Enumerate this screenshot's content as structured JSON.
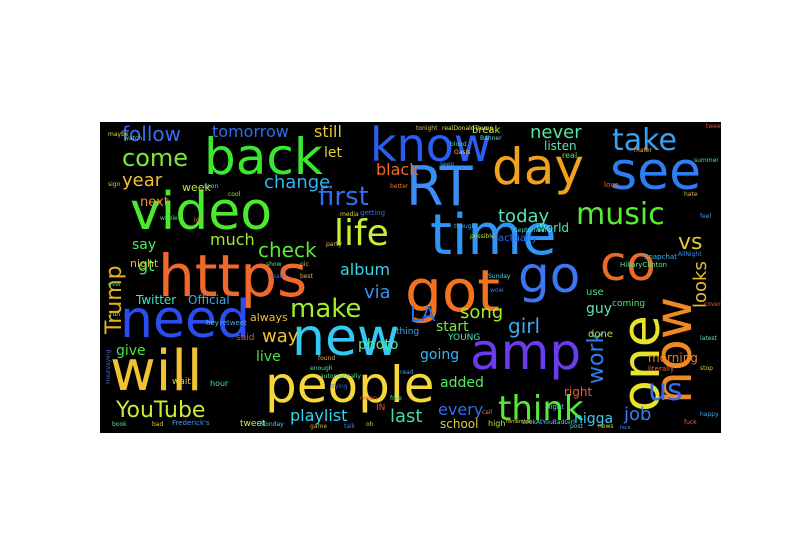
{
  "words": [
    {
      "text": "https",
      "color": "#f0682a"
    },
    {
      "text": "got",
      "color": "#f2721f"
    },
    {
      "text": "time",
      "color": "#2f95f7"
    },
    {
      "text": "people",
      "color": "#f5d73a"
    },
    {
      "text": "will",
      "color": "#f1c232"
    },
    {
      "text": "back",
      "color": "#3ae82f"
    },
    {
      "text": "video",
      "color": "#4bea2c"
    },
    {
      "text": "need",
      "color": "#2a4df0"
    },
    {
      "text": "new",
      "color": "#33c9f3"
    },
    {
      "text": "RT",
      "color": "#3c8ef7"
    },
    {
      "text": "know",
      "color": "#2a5ef2"
    },
    {
      "text": "day",
      "color": "#f2a11c"
    },
    {
      "text": "see",
      "color": "#2f7df5"
    },
    {
      "text": "go",
      "color": "#3d76f2"
    },
    {
      "text": "amp",
      "color": "#6a3cf0"
    },
    {
      "text": "one",
      "color": "#e7e32b"
    },
    {
      "text": "co",
      "color": "#ec6b24"
    },
    {
      "text": "now",
      "color": "#ed8a23"
    },
    {
      "text": "think",
      "color": "#55e93a"
    },
    {
      "text": "music",
      "color": "#59ec35"
    },
    {
      "text": "take",
      "color": "#3aa1f2"
    },
    {
      "text": "life",
      "color": "#c6ef2f"
    },
    {
      "text": "come",
      "color": "#7be838"
    },
    {
      "text": "follow",
      "color": "#3a6ef0"
    },
    {
      "text": "first",
      "color": "#2e6ff0"
    },
    {
      "text": "make",
      "color": "#a0ed2c"
    },
    {
      "text": "YouTube",
      "color": "#c6ec34"
    },
    {
      "text": "Trump",
      "color": "#e6b11f"
    },
    {
      "text": "us",
      "color": "#3a68f0"
    },
    {
      "text": "work",
      "color": "#2d7df2"
    },
    {
      "text": "change",
      "color": "#31b4f2"
    },
    {
      "text": "year",
      "color": "#f1c22e"
    },
    {
      "text": "check",
      "color": "#59e934"
    },
    {
      "text": "today",
      "color": "#55e3b6"
    },
    {
      "text": "vs",
      "color": "#e9c82b"
    },
    {
      "text": "never",
      "color": "#50e8a3"
    },
    {
      "text": "tomorrow",
      "color": "#2f6de8"
    },
    {
      "text": "still",
      "color": "#e8c635"
    },
    {
      "text": "looks",
      "color": "#e5bb34"
    },
    {
      "text": "via",
      "color": "#3a8ef0"
    },
    {
      "text": "album",
      "color": "#39d3e8"
    },
    {
      "text": "song",
      "color": "#a2ea2f"
    },
    {
      "text": "girl",
      "color": "#39a8ef"
    },
    {
      "text": "job",
      "color": "#3a7cf0"
    },
    {
      "text": "LA",
      "color": "#2a6ef0"
    },
    {
      "text": "gt",
      "color": "#3ee86a"
    },
    {
      "text": "way",
      "color": "#f1c32c"
    },
    {
      "text": "much",
      "color": "#a8e631"
    },
    {
      "text": "say",
      "color": "#53e85a"
    },
    {
      "text": "black",
      "color": "#f26a24"
    },
    {
      "text": "last",
      "color": "#3de1a0"
    },
    {
      "text": "playlist",
      "color": "#31d7ee"
    },
    {
      "text": "every",
      "color": "#2f6ef0"
    },
    {
      "text": "let",
      "color": "#e2d13a"
    },
    {
      "text": "next",
      "color": "#f08d2a"
    },
    {
      "text": "week",
      "color": "#b9e83e"
    },
    {
      "text": "night",
      "color": "#f2b237"
    },
    {
      "text": "give",
      "color": "#48e53f"
    },
    {
      "text": "live",
      "color": "#3fe63e"
    },
    {
      "text": "photo",
      "color": "#55e9a3"
    },
    {
      "text": "start",
      "color": "#7be64a"
    },
    {
      "text": "going",
      "color": "#34b5f0"
    },
    {
      "text": "added",
      "color": "#57ea64"
    },
    {
      "text": "school",
      "color": "#e2ce38"
    },
    {
      "text": "nigga",
      "color": "#41c8ee"
    },
    {
      "text": "guy",
      "color": "#5ae8b6"
    },
    {
      "text": "Twitter",
      "color": "#3ee5be"
    },
    {
      "text": "Official",
      "color": "#3ca9ec"
    },
    {
      "text": "always",
      "color": "#f0c02c"
    },
    {
      "text": "morning",
      "color": "#ea7a2a"
    },
    {
      "text": "world",
      "color": "#49e5c6"
    },
    {
      "text": "actually",
      "color": "#2e6cf0"
    },
    {
      "text": "listen",
      "color": "#58e6b8"
    },
    {
      "text": "break",
      "color": "#b8e842"
    },
    {
      "text": "right",
      "color": "#f05c2a"
    },
    {
      "text": "done",
      "color": "#a5e645"
    },
    {
      "text": "use",
      "color": "#3fe47a"
    },
    {
      "text": "coming",
      "color": "#57e85a"
    },
    {
      "text": "hour",
      "color": "#47e0ba"
    },
    {
      "text": "wait",
      "color": "#f0c43a"
    },
    {
      "text": "tweet",
      "color": "#e8e43e"
    },
    {
      "text": "said",
      "color": "#e75030"
    },
    {
      "text": "real",
      "color": "#5ae658"
    },
    {
      "text": "high",
      "color": "#bce33e"
    },
    {
      "text": "thing",
      "color": "#37a9ee"
    },
    {
      "text": "YOUNG",
      "color": "#44e5c4"
    },
    {
      "text": "love",
      "color": "#f26f26"
    },
    {
      "text": "realDonaldTrump",
      "color": "#e7e34a"
    },
    {
      "text": "HillaryClinton",
      "color": "#5be68d"
    },
    {
      "text": "Snapchat",
      "color": "#3db5ee"
    },
    {
      "text": "literally",
      "color": "#e86a2d"
    },
    {
      "text": "Frederick's",
      "color": "#3f9fee"
    },
    {
      "text": "automatically",
      "color": "#58e07e"
    },
    {
      "text": "LookAtYouBadGirl",
      "color": "#41dfe8"
    },
    {
      "text": "remember",
      "color": "#e9d543"
    },
    {
      "text": "Hourvaying",
      "color": "#3a6ef0"
    },
    {
      "text": "mater",
      "color": "#f0b03a"
    },
    {
      "text": "flight",
      "color": "#49d9e6"
    },
    {
      "text": "better",
      "color": "#e07b2e"
    },
    {
      "text": "thought",
      "color": "#3fb0ee"
    },
    {
      "text": "possible",
      "color": "#a8e83a"
    },
    {
      "text": "September",
      "color": "#48e1d2"
    },
    {
      "text": "getting",
      "color": "#2f6df0"
    },
    {
      "text": "media",
      "color": "#e4cf36"
    },
    {
      "text": "enough",
      "color": "#58e38e"
    },
    {
      "text": "trying",
      "color": "#2f67ec"
    },
    {
      "text": "found",
      "color": "#e8b23a"
    },
    {
      "text": "hey",
      "color": "#3dd1e6"
    },
    {
      "text": "retweet",
      "color": "#42a8f0"
    },
    {
      "text": "maybe",
      "color": "#e5da44"
    },
    {
      "text": "watch",
      "color": "#53e49c"
    },
    {
      "text": "sign",
      "color": "#e6c640"
    },
    {
      "text": "whole",
      "color": "#4de07a"
    },
    {
      "text": "lot",
      "color": "#e3803a"
    },
    {
      "text": "soon",
      "color": "#56d7e4"
    },
    {
      "text": "cool",
      "color": "#a9e24a"
    },
    {
      "text": "seen",
      "color": "#37a6ec"
    },
    {
      "text": "Oasis",
      "color": "#e2ce46"
    },
    {
      "text": "blood",
      "color": "#4cdba6"
    },
    {
      "text": "tonight",
      "color": "#e8c54a"
    },
    {
      "text": "Banner",
      "color": "#58dde2"
    },
    {
      "text": "AllNight",
      "color": "#3d8aee"
    },
    {
      "text": "tweets",
      "color": "#e04d35"
    },
    {
      "text": "summer",
      "color": "#49df94"
    },
    {
      "text": "hate",
      "color": "#e2b342"
    },
    {
      "text": "feel",
      "color": "#3e96ec"
    },
    {
      "text": "cover",
      "color": "#e65e30"
    },
    {
      "text": "latest",
      "color": "#5be3c0"
    },
    {
      "text": "stop",
      "color": "#e5c240"
    },
    {
      "text": "happy",
      "color": "#42a5ee"
    },
    {
      "text": "IN",
      "color": "#e3513a"
    },
    {
      "text": "fuck",
      "color": "#e8623a"
    },
    {
      "text": "ever",
      "color": "#4ad897"
    },
    {
      "text": "run",
      "color": "#e6d848"
    },
    {
      "text": "book",
      "color": "#58e392"
    },
    {
      "text": "bad",
      "color": "#e9c43c"
    },
    {
      "text": "Monday",
      "color": "#47d7e6"
    },
    {
      "text": "game",
      "color": "#e2a43e"
    },
    {
      "text": "talk",
      "color": "#3c80ee"
    },
    {
      "text": "oh",
      "color": "#a8e04a"
    },
    {
      "text": "call",
      "color": "#e57a38"
    },
    {
      "text": "post",
      "color": "#4ddbc6"
    },
    {
      "text": "news",
      "color": "#e3cf48"
    },
    {
      "text": "face",
      "color": "#3e8cee"
    },
    {
      "text": "mean",
      "color": "#e05a35"
    },
    {
      "text": "free",
      "color": "#56e0a8"
    },
    {
      "text": "man",
      "color": "#2f67ec"
    },
    {
      "text": "best",
      "color": "#e3b540"
    },
    {
      "text": "Sunday",
      "color": "#46ddde"
    },
    {
      "text": "wow",
      "color": "#3c7bee"
    },
    {
      "text": "party",
      "color": "#e2c648"
    },
    {
      "text": "show",
      "color": "#56e07e"
    },
    {
      "text": "pic",
      "color": "#e0ba48"
    },
    {
      "text": "read",
      "color": "#3fa1ec"
    }
  ]
}
